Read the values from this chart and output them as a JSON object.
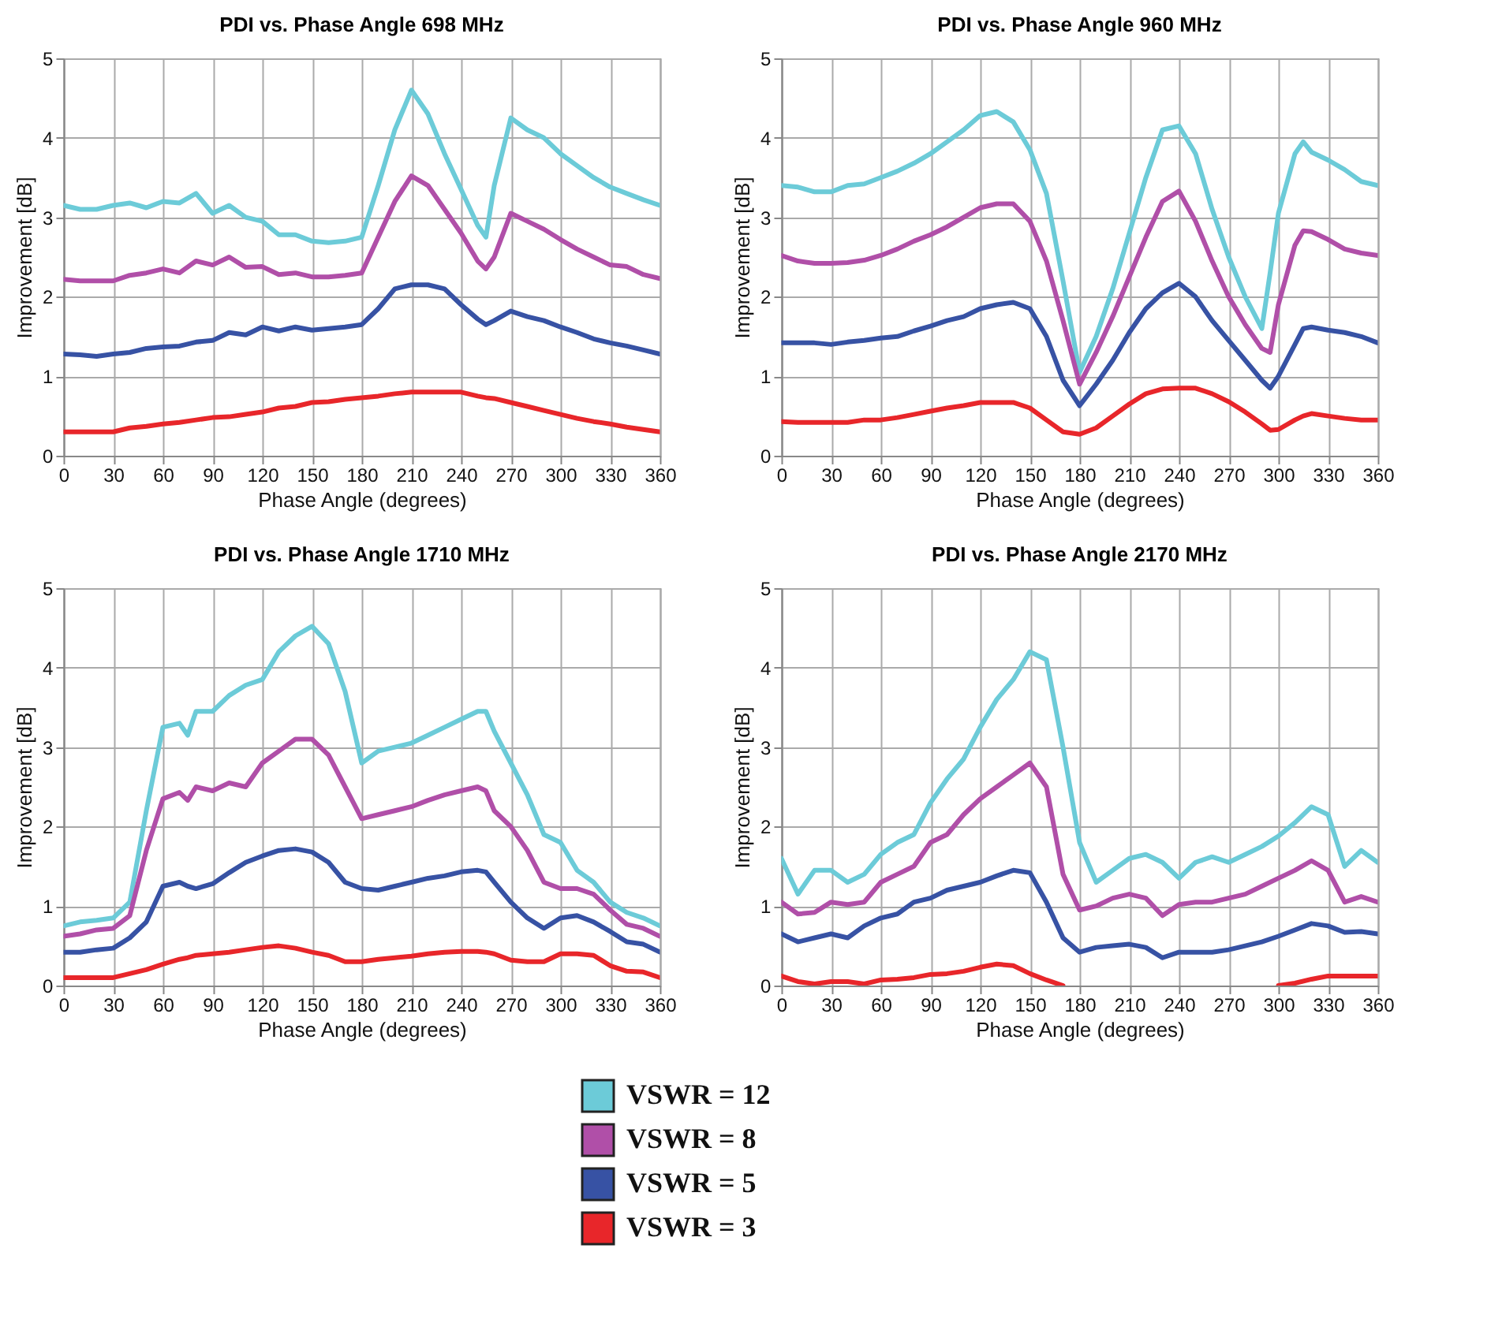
{
  "chart_data": [
    {
      "type": "line",
      "title": "PDI vs. Phase Angle 698 MHz",
      "xlabel": "Phase Angle (degrees)",
      "ylabel": "Improvement [dB]",
      "grid": true,
      "legend": "bottom",
      "xlim": [
        0,
        360
      ],
      "xticks": [
        0,
        30,
        60,
        90,
        120,
        150,
        180,
        210,
        240,
        270,
        300,
        330,
        360
      ],
      "ylim": [
        0,
        5
      ],
      "yticks": [
        0,
        1,
        2,
        3,
        4,
        5
      ],
      "x": [
        0,
        10,
        20,
        30,
        40,
        50,
        60,
        70,
        80,
        90,
        100,
        110,
        120,
        130,
        140,
        150,
        160,
        170,
        180,
        190,
        200,
        210,
        220,
        230,
        240,
        250,
        255,
        260,
        270,
        280,
        290,
        300,
        310,
        320,
        330,
        340,
        350,
        360
      ],
      "series": [
        {
          "name": "VSWR = 12",
          "color": "#6ccbd8",
          "values": [
            3.15,
            3.1,
            3.1,
            3.15,
            3.18,
            3.12,
            3.2,
            3.18,
            3.3,
            3.05,
            3.15,
            3.0,
            2.95,
            2.78,
            2.78,
            2.7,
            2.68,
            2.7,
            2.75,
            3.4,
            4.1,
            4.6,
            4.3,
            3.8,
            3.35,
            2.9,
            2.75,
            3.4,
            4.25,
            4.1,
            4.0,
            3.8,
            3.65,
            3.5,
            3.38,
            3.3,
            3.22,
            3.15
          ]
        },
        {
          "name": "VSWR = 8",
          "color": "#b04fa8",
          "values": [
            2.22,
            2.2,
            2.2,
            2.2,
            2.27,
            2.3,
            2.35,
            2.3,
            2.45,
            2.4,
            2.5,
            2.37,
            2.38,
            2.28,
            2.3,
            2.25,
            2.25,
            2.27,
            2.3,
            2.75,
            3.2,
            3.52,
            3.4,
            3.1,
            2.8,
            2.45,
            2.35,
            2.5,
            3.05,
            2.95,
            2.85,
            2.72,
            2.6,
            2.5,
            2.4,
            2.38,
            2.28,
            2.23
          ]
        },
        {
          "name": "VSWR = 5",
          "color": "#3752a4",
          "values": [
            1.28,
            1.27,
            1.25,
            1.28,
            1.3,
            1.35,
            1.37,
            1.38,
            1.43,
            1.45,
            1.55,
            1.52,
            1.62,
            1.57,
            1.62,
            1.58,
            1.6,
            1.62,
            1.65,
            1.85,
            2.1,
            2.15,
            2.15,
            2.1,
            1.9,
            1.72,
            1.65,
            1.7,
            1.82,
            1.75,
            1.7,
            1.62,
            1.55,
            1.47,
            1.42,
            1.38,
            1.33,
            1.28
          ]
        },
        {
          "name": "VSWR = 3",
          "color": "#e8262a",
          "values": [
            0.3,
            0.3,
            0.3,
            0.3,
            0.35,
            0.37,
            0.4,
            0.42,
            0.45,
            0.48,
            0.49,
            0.52,
            0.55,
            0.6,
            0.62,
            0.67,
            0.68,
            0.71,
            0.73,
            0.75,
            0.78,
            0.8,
            0.8,
            0.8,
            0.8,
            0.75,
            0.73,
            0.72,
            0.67,
            0.62,
            0.57,
            0.52,
            0.47,
            0.43,
            0.4,
            0.36,
            0.33,
            0.3
          ]
        }
      ]
    },
    {
      "type": "line",
      "title": "PDI vs. Phase Angle 960 MHz",
      "xlabel": "Phase Angle (degrees)",
      "ylabel": "Improvement [dB]",
      "grid": true,
      "legend": "bottom",
      "xlim": [
        0,
        360
      ],
      "xticks": [
        0,
        30,
        60,
        90,
        120,
        150,
        180,
        210,
        240,
        270,
        300,
        330,
        360
      ],
      "ylim": [
        0,
        5
      ],
      "yticks": [
        0,
        1,
        2,
        3,
        4,
        5
      ],
      "x": [
        0,
        10,
        20,
        30,
        40,
        50,
        60,
        70,
        80,
        90,
        100,
        110,
        120,
        130,
        140,
        150,
        160,
        170,
        180,
        190,
        200,
        210,
        220,
        230,
        240,
        250,
        260,
        270,
        280,
        290,
        295,
        300,
        310,
        315,
        320,
        330,
        340,
        350,
        360
      ],
      "series": [
        {
          "name": "VSWR = 12",
          "color": "#6ccbd8",
          "values": [
            3.4,
            3.38,
            3.32,
            3.32,
            3.4,
            3.42,
            3.5,
            3.58,
            3.68,
            3.8,
            3.95,
            4.1,
            4.28,
            4.33,
            4.2,
            3.85,
            3.3,
            2.2,
            1.05,
            1.5,
            2.1,
            2.8,
            3.5,
            4.1,
            4.15,
            3.8,
            3.1,
            2.5,
            2.0,
            1.6,
            2.3,
            3.05,
            3.8,
            3.95,
            3.82,
            3.72,
            3.6,
            3.45,
            3.4
          ]
        },
        {
          "name": "VSWR = 8",
          "color": "#b04fa8",
          "values": [
            2.52,
            2.45,
            2.42,
            2.42,
            2.43,
            2.46,
            2.52,
            2.6,
            2.7,
            2.78,
            2.88,
            3.0,
            3.12,
            3.17,
            3.17,
            2.95,
            2.45,
            1.7,
            0.9,
            1.3,
            1.75,
            2.25,
            2.75,
            3.2,
            3.33,
            2.95,
            2.45,
            2.0,
            1.65,
            1.35,
            1.3,
            1.9,
            2.65,
            2.83,
            2.82,
            2.72,
            2.6,
            2.55,
            2.52
          ]
        },
        {
          "name": "VSWR = 5",
          "color": "#3752a4",
          "values": [
            1.42,
            1.42,
            1.42,
            1.4,
            1.43,
            1.45,
            1.48,
            1.5,
            1.57,
            1.63,
            1.7,
            1.75,
            1.85,
            1.9,
            1.93,
            1.85,
            1.5,
            0.95,
            0.63,
            0.9,
            1.2,
            1.55,
            1.85,
            2.05,
            2.17,
            2.0,
            1.7,
            1.45,
            1.2,
            0.95,
            0.85,
            1.0,
            1.4,
            1.6,
            1.62,
            1.58,
            1.55,
            1.5,
            1.42
          ]
        },
        {
          "name": "VSWR = 3",
          "color": "#e8262a",
          "values": [
            0.43,
            0.42,
            0.42,
            0.42,
            0.42,
            0.45,
            0.45,
            0.48,
            0.52,
            0.56,
            0.6,
            0.63,
            0.67,
            0.67,
            0.67,
            0.6,
            0.45,
            0.3,
            0.27,
            0.35,
            0.5,
            0.65,
            0.78,
            0.84,
            0.85,
            0.85,
            0.78,
            0.68,
            0.55,
            0.4,
            0.32,
            0.33,
            0.45,
            0.5,
            0.53,
            0.5,
            0.47,
            0.45,
            0.45
          ]
        }
      ]
    },
    {
      "type": "line",
      "title": "PDI vs. Phase Angle 1710 MHz",
      "xlabel": "Phase Angle (degrees)",
      "ylabel": "Improvement [dB]",
      "grid": true,
      "legend": "bottom",
      "xlim": [
        0,
        360
      ],
      "xticks": [
        0,
        30,
        60,
        90,
        120,
        150,
        180,
        210,
        240,
        270,
        300,
        330,
        360
      ],
      "ylim": [
        0,
        5
      ],
      "yticks": [
        0,
        1,
        2,
        3,
        4,
        5
      ],
      "x": [
        0,
        10,
        20,
        30,
        40,
        50,
        60,
        70,
        75,
        80,
        90,
        100,
        110,
        120,
        130,
        140,
        150,
        160,
        170,
        180,
        190,
        200,
        210,
        220,
        230,
        240,
        250,
        255,
        260,
        270,
        280,
        290,
        300,
        310,
        320,
        330,
        340,
        350,
        360
      ],
      "series": [
        {
          "name": "VSWR = 12",
          "color": "#6ccbd8",
          "values": [
            0.75,
            0.8,
            0.82,
            0.85,
            1.05,
            2.2,
            3.25,
            3.3,
            3.15,
            3.45,
            3.45,
            3.65,
            3.78,
            3.85,
            4.2,
            4.4,
            4.52,
            4.3,
            3.7,
            2.8,
            2.95,
            3.0,
            3.05,
            3.15,
            3.25,
            3.35,
            3.45,
            3.45,
            3.2,
            2.8,
            2.4,
            1.9,
            1.8,
            1.45,
            1.3,
            1.05,
            0.92,
            0.85,
            0.75
          ]
        },
        {
          "name": "VSWR = 8",
          "color": "#b04fa8",
          "values": [
            0.62,
            0.65,
            0.7,
            0.72,
            0.88,
            1.7,
            2.35,
            2.43,
            2.33,
            2.5,
            2.45,
            2.55,
            2.5,
            2.8,
            2.95,
            3.1,
            3.1,
            2.9,
            2.5,
            2.1,
            2.15,
            2.2,
            2.25,
            2.33,
            2.4,
            2.45,
            2.5,
            2.45,
            2.2,
            2.0,
            1.7,
            1.3,
            1.22,
            1.22,
            1.15,
            0.95,
            0.77,
            0.72,
            0.62
          ]
        },
        {
          "name": "VSWR = 5",
          "color": "#3752a4",
          "values": [
            0.42,
            0.42,
            0.45,
            0.47,
            0.6,
            0.8,
            1.25,
            1.3,
            1.25,
            1.22,
            1.28,
            1.42,
            1.55,
            1.63,
            1.7,
            1.72,
            1.68,
            1.55,
            1.3,
            1.22,
            1.2,
            1.25,
            1.3,
            1.35,
            1.38,
            1.43,
            1.45,
            1.43,
            1.3,
            1.05,
            0.85,
            0.72,
            0.85,
            0.88,
            0.8,
            0.68,
            0.55,
            0.52,
            0.42
          ]
        },
        {
          "name": "VSWR = 3",
          "color": "#e8262a",
          "values": [
            0.1,
            0.1,
            0.1,
            0.1,
            0.15,
            0.2,
            0.27,
            0.33,
            0.35,
            0.38,
            0.4,
            0.42,
            0.45,
            0.48,
            0.5,
            0.47,
            0.42,
            0.38,
            0.3,
            0.3,
            0.33,
            0.35,
            0.37,
            0.4,
            0.42,
            0.43,
            0.43,
            0.42,
            0.4,
            0.32,
            0.3,
            0.3,
            0.4,
            0.4,
            0.38,
            0.25,
            0.18,
            0.17,
            0.1
          ]
        }
      ]
    },
    {
      "type": "line",
      "title": "PDI vs. Phase Angle 2170 MHz",
      "xlabel": "Phase Angle (degrees)",
      "ylabel": "Improvement [dB]",
      "grid": true,
      "legend": "bottom",
      "xlim": [
        0,
        360
      ],
      "xticks": [
        0,
        30,
        60,
        90,
        120,
        150,
        180,
        210,
        240,
        270,
        300,
        330,
        360
      ],
      "ylim": [
        0,
        5
      ],
      "yticks": [
        0,
        1,
        2,
        3,
        4,
        5
      ],
      "x": [
        0,
        10,
        20,
        30,
        40,
        50,
        60,
        70,
        80,
        90,
        100,
        110,
        120,
        130,
        140,
        150,
        160,
        170,
        180,
        190,
        200,
        210,
        220,
        230,
        240,
        250,
        260,
        270,
        280,
        290,
        300,
        310,
        320,
        330,
        340,
        350,
        360
      ],
      "series": [
        {
          "name": "VSWR = 12",
          "color": "#6ccbd8",
          "values": [
            1.6,
            1.15,
            1.45,
            1.45,
            1.3,
            1.4,
            1.65,
            1.8,
            1.9,
            2.3,
            2.6,
            2.85,
            3.25,
            3.6,
            3.85,
            4.2,
            4.1,
            3.0,
            1.8,
            1.3,
            1.45,
            1.6,
            1.65,
            1.55,
            1.35,
            1.55,
            1.62,
            1.55,
            1.65,
            1.75,
            1.88,
            2.05,
            2.25,
            2.15,
            1.5,
            1.7,
            1.55
          ]
        },
        {
          "name": "VSWR = 8",
          "color": "#b04fa8",
          "values": [
            1.05,
            0.9,
            0.92,
            1.05,
            1.02,
            1.05,
            1.3,
            1.4,
            1.5,
            1.8,
            1.9,
            2.15,
            2.35,
            2.5,
            2.65,
            2.8,
            2.5,
            1.4,
            0.95,
            1.0,
            1.1,
            1.15,
            1.1,
            0.88,
            1.02,
            1.05,
            1.05,
            1.1,
            1.15,
            1.25,
            1.35,
            1.45,
            1.57,
            1.45,
            1.05,
            1.12,
            1.05
          ]
        },
        {
          "name": "VSWR = 5",
          "color": "#3752a4",
          "values": [
            0.65,
            0.55,
            0.6,
            0.65,
            0.6,
            0.75,
            0.85,
            0.9,
            1.05,
            1.1,
            1.2,
            1.25,
            1.3,
            1.38,
            1.45,
            1.42,
            1.05,
            0.6,
            0.42,
            0.48,
            0.5,
            0.52,
            0.48,
            0.35,
            0.42,
            0.42,
            0.42,
            0.45,
            0.5,
            0.55,
            0.62,
            0.7,
            0.78,
            0.75,
            0.67,
            0.68,
            0.65
          ]
        },
        {
          "name": "VSWR = 3",
          "color": "#e8262a",
          "values": [
            0.12,
            0.05,
            0.02,
            0.05,
            0.05,
            0.02,
            0.07,
            0.08,
            0.1,
            0.14,
            0.15,
            0.18,
            0.23,
            0.27,
            0.25,
            0.15,
            0.07,
            0.0,
            null,
            null,
            null,
            null,
            null,
            null,
            null,
            null,
            null,
            null,
            null,
            null,
            0.0,
            0.03,
            0.08,
            0.12,
            0.12,
            0.12,
            0.12
          ]
        }
      ]
    }
  ]
}
